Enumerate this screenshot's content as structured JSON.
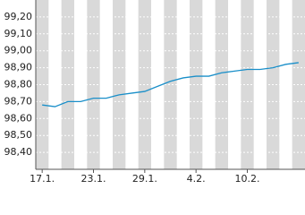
{
  "chart_data": {
    "type": "line",
    "categories": [
      "17.1.",
      null,
      null,
      null,
      "23.1.",
      null,
      null,
      null,
      "29.1.",
      null,
      null,
      null,
      "4.2.",
      null,
      null,
      null,
      "10.2.",
      null,
      null,
      null,
      null
    ],
    "values": [
      98.68,
      98.67,
      98.7,
      98.7,
      98.72,
      98.72,
      98.74,
      98.75,
      98.76,
      98.79,
      98.82,
      98.84,
      98.85,
      98.85,
      98.87,
      98.88,
      98.89,
      98.89,
      98.9,
      98.92,
      98.93
    ],
    "color": "#1a8fc9",
    "ylim": [
      98.3,
      99.3
    ],
    "yticks": [
      {
        "value": 98.4,
        "label": "98,40"
      },
      {
        "value": 98.5,
        "label": "98,50"
      },
      {
        "value": 98.6,
        "label": "98,60"
      },
      {
        "value": 98.7,
        "label": "98,70"
      },
      {
        "value": 98.8,
        "label": "98,80"
      },
      {
        "value": 98.9,
        "label": "98,90"
      },
      {
        "value": 99.0,
        "label": "99,00"
      },
      {
        "value": 99.1,
        "label": "99,10"
      },
      {
        "value": 99.2,
        "label": "99,20"
      }
    ],
    "grid": true
  }
}
